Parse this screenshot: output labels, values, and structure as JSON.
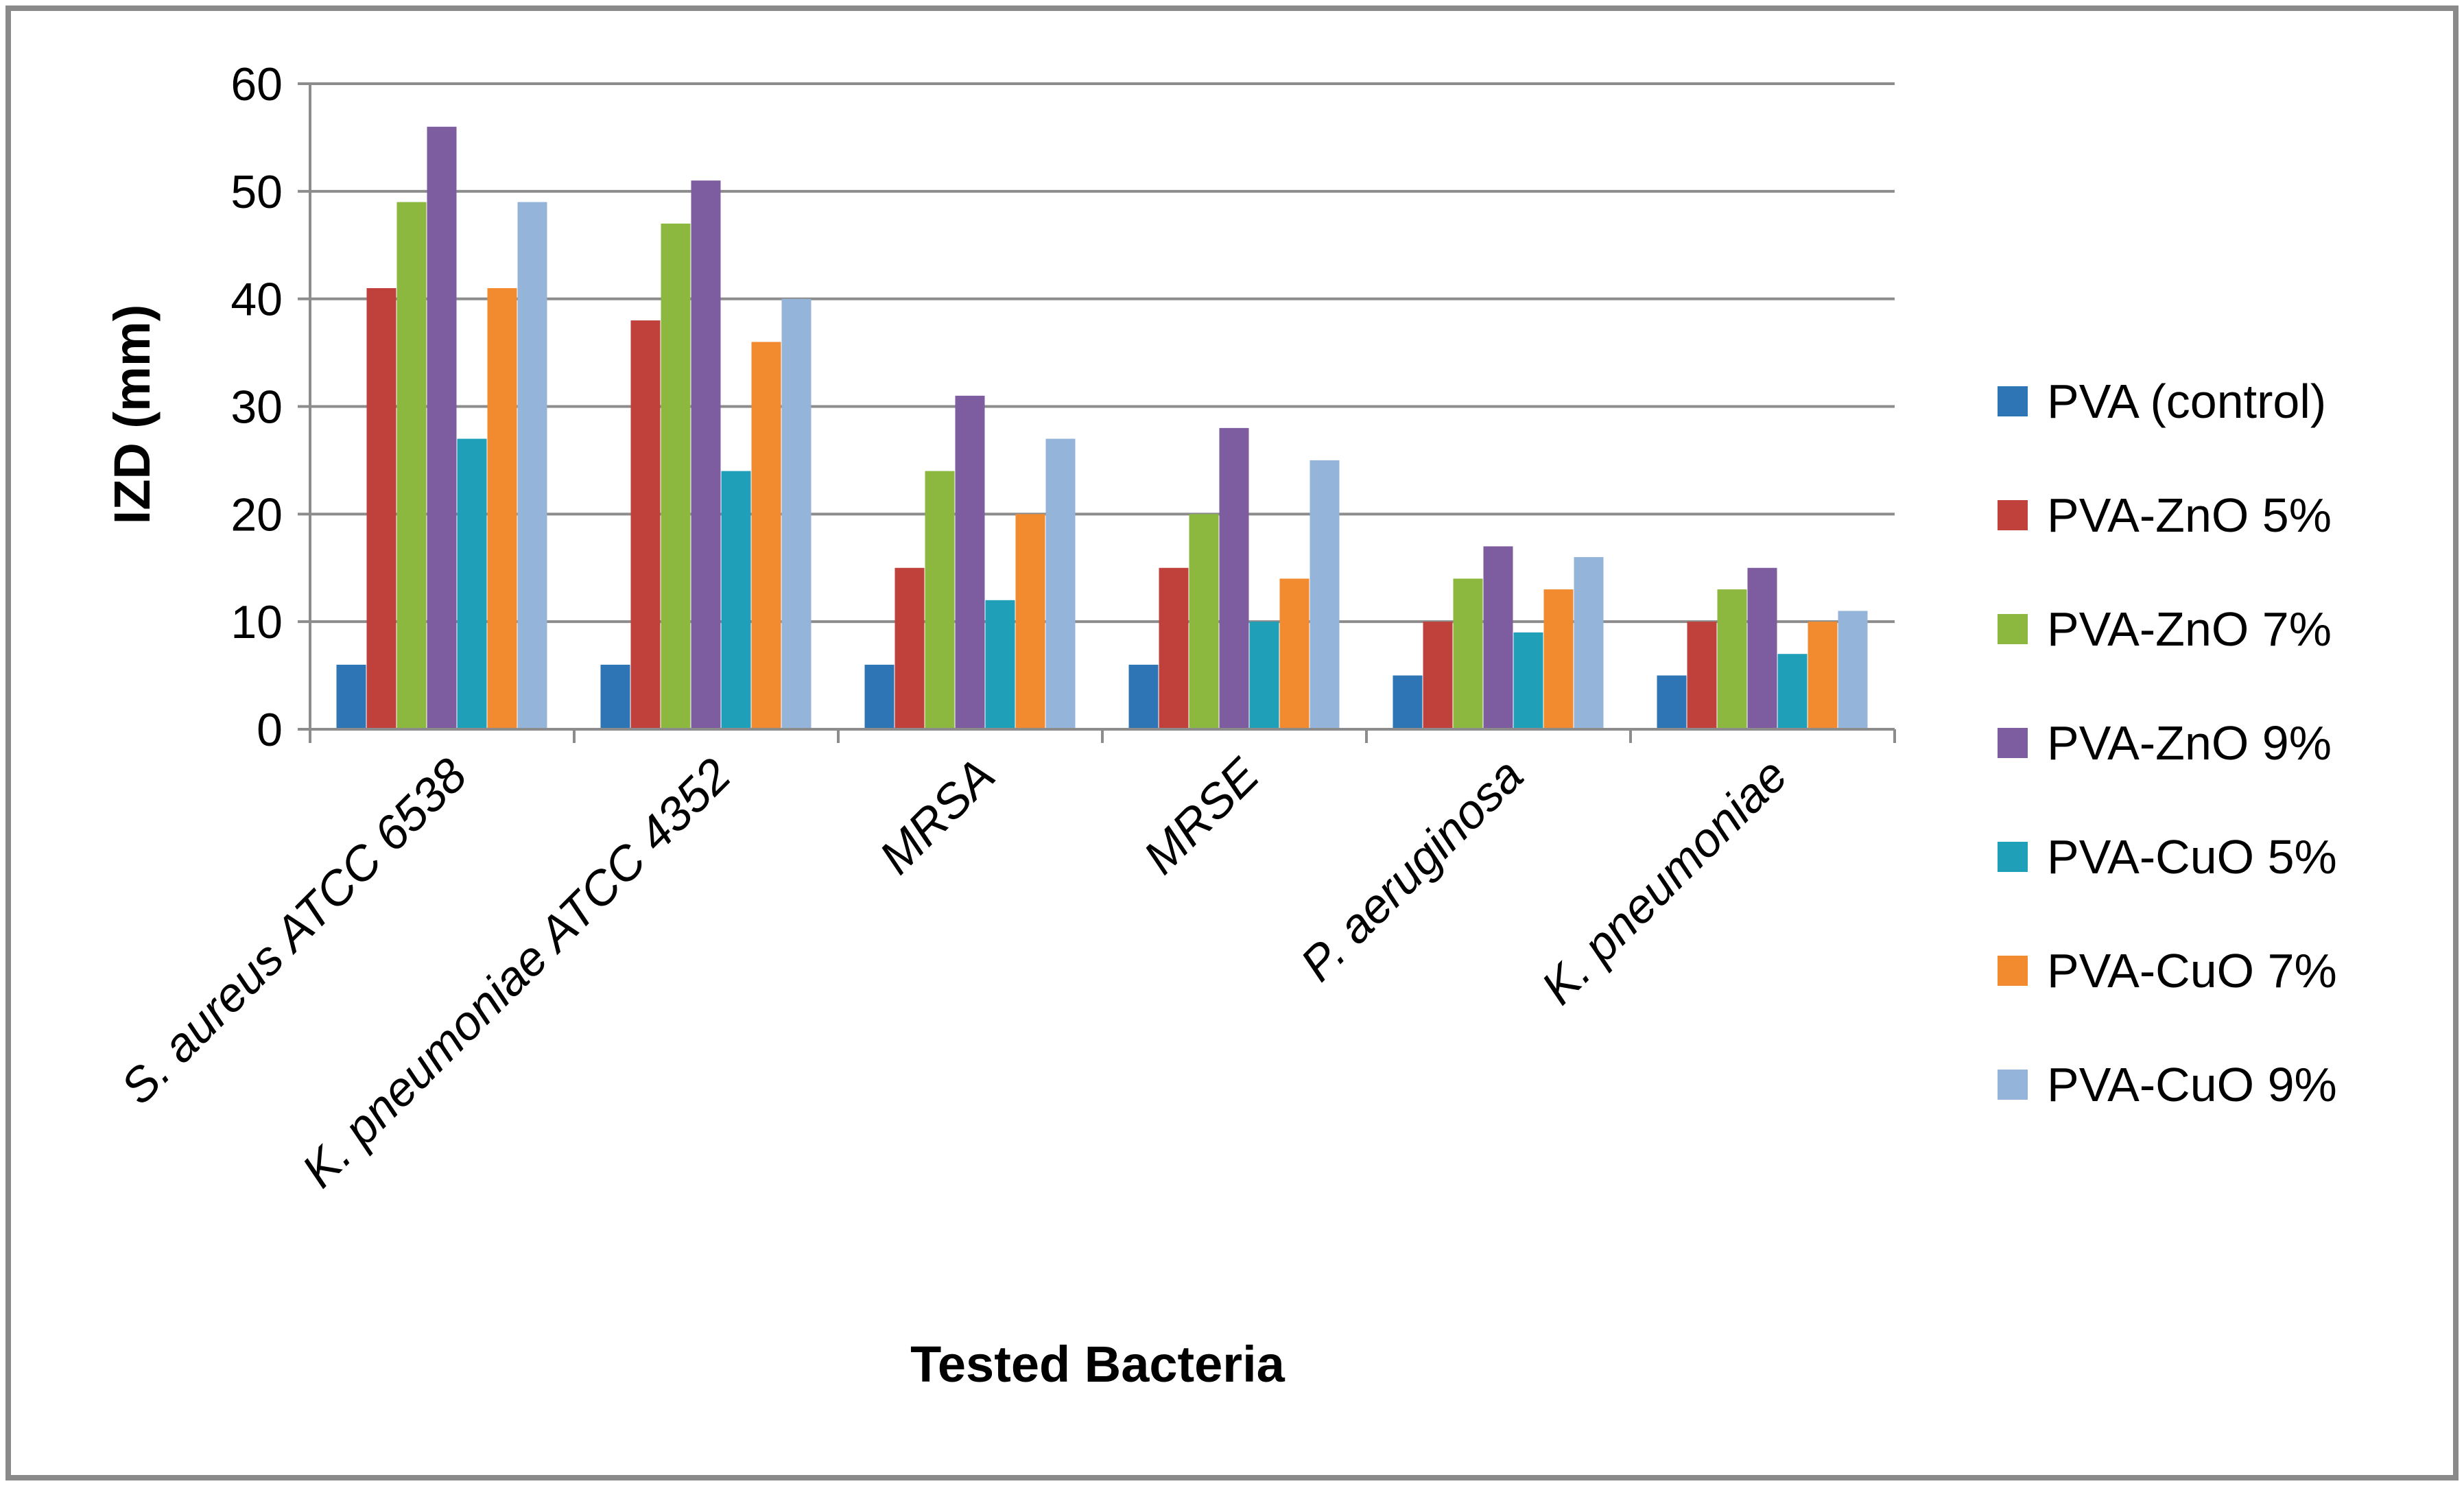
{
  "chart_data": {
    "type": "bar",
    "title": "",
    "xlabel": "Tested Bacteria",
    "ylabel": "IZD (mm)",
    "ylim": [
      0,
      60
    ],
    "yticks": [
      "0",
      "10",
      "20",
      "30",
      "40",
      "50",
      "60"
    ],
    "grid": true,
    "legend_position": "right",
    "categories": [
      "S. aureus ATCC 6538",
      "K. pneumoniae ATCC 4352",
      "MRSA",
      "MRSE",
      "P. aeruginosa",
      "K. pneumoniae"
    ],
    "series": [
      {
        "name": "PVA (control)",
        "color": "#2E75B6",
        "values": [
          6,
          6,
          6,
          6,
          5,
          5
        ]
      },
      {
        "name": "PVA-ZnO 5%",
        "color": "#C0403C",
        "values": [
          41,
          38,
          15,
          15,
          10,
          10
        ]
      },
      {
        "name": "PVA-ZnO 7%",
        "color": "#8CB83F",
        "values": [
          49,
          47,
          24,
          20,
          14,
          13
        ]
      },
      {
        "name": "PVA-ZnO 9%",
        "color": "#7E5CA0",
        "values": [
          56,
          51,
          31,
          28,
          17,
          15
        ]
      },
      {
        "name": "PVA-CuO 5%",
        "color": "#1FA0B8",
        "values": [
          27,
          24,
          12,
          10,
          9,
          7
        ]
      },
      {
        "name": "PVA-CuO 7%",
        "color": "#F28B30",
        "values": [
          41,
          36,
          20,
          14,
          13,
          10
        ]
      },
      {
        "name": "PVA-CuO 9%",
        "color": "#94B4DA",
        "values": [
          49,
          40,
          27,
          25,
          16,
          11
        ]
      }
    ]
  }
}
